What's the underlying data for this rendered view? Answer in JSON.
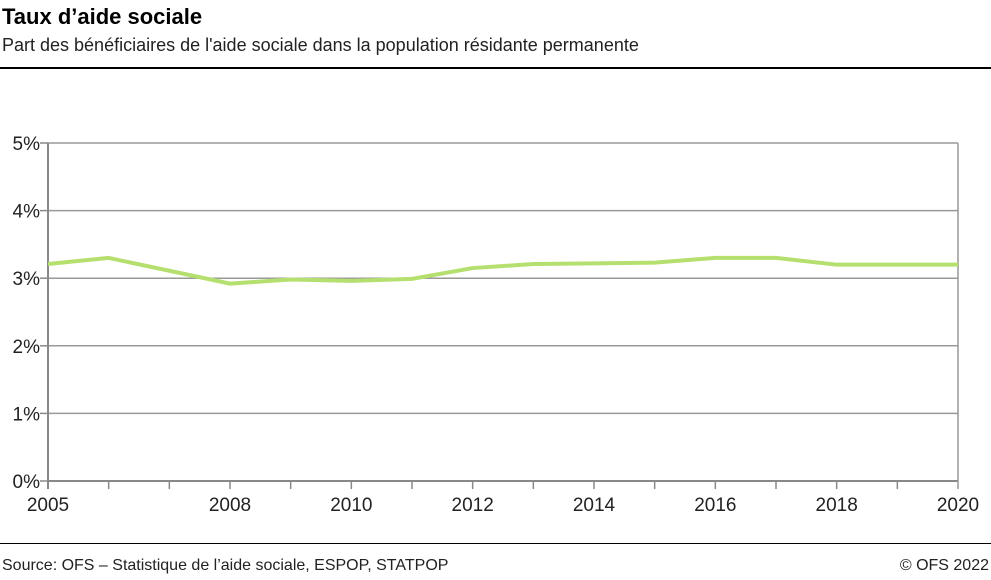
{
  "header": {
    "title": "Taux d’aide sociale",
    "subtitle": "Part des bénéficiaires de l'aide sociale dans la population résidante permanente"
  },
  "footer": {
    "source": "Source: OFS – Statistique de l’aide sociale, ESPOP, STATPOP",
    "copyright": "© OFS 2022"
  },
  "chart_data": {
    "type": "line",
    "x": [
      2005,
      2006,
      2007,
      2008,
      2009,
      2010,
      2011,
      2012,
      2013,
      2014,
      2015,
      2016,
      2017,
      2018,
      2019,
      2020
    ],
    "series": [
      {
        "values": [
          3.21,
          3.3,
          3.11,
          2.92,
          2.98,
          2.96,
          2.99,
          3.15,
          3.21,
          3.22,
          3.23,
          3.3,
          3.3,
          3.2,
          3.2,
          3.2
        ],
        "color": "#b5e06f"
      }
    ],
    "xlim": [
      2005,
      2020
    ],
    "ylim": [
      0,
      5
    ],
    "xticklabels": [
      "2005",
      "2008",
      "2010",
      "2012",
      "2014",
      "2016",
      "2018",
      "2020"
    ],
    "yticklabels": [
      "0%",
      "1%",
      "2%",
      "3%",
      "4%",
      "5%"
    ],
    "grid": "horizontal",
    "xlabel": "",
    "ylabel": ""
  }
}
